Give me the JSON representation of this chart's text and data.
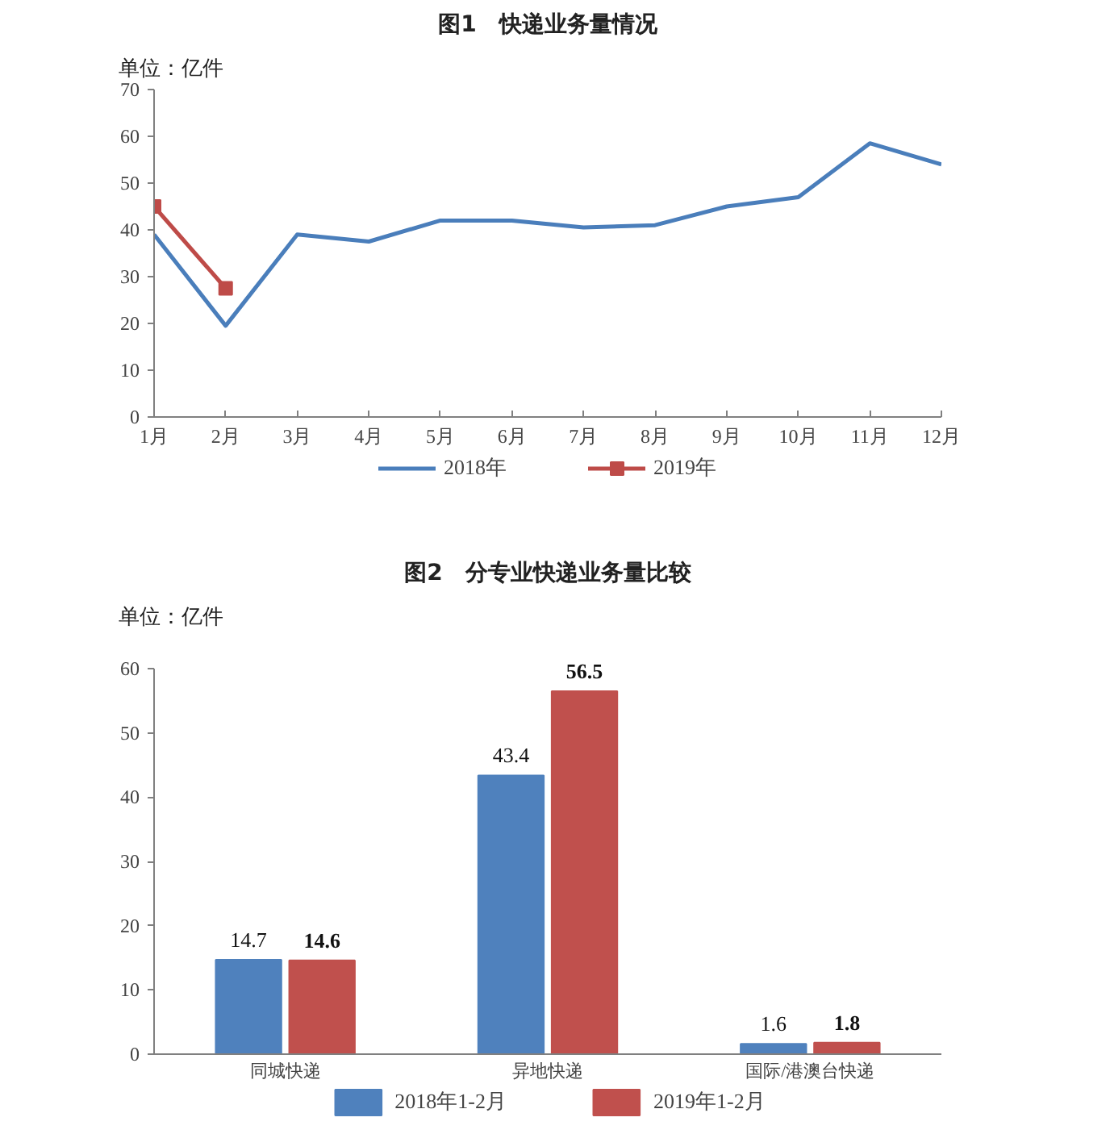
{
  "chart_data": [
    {
      "type": "line",
      "title": "图1　快递业务量情况",
      "ylabel": "单位：亿件",
      "categories": [
        "1月",
        "2月",
        "3月",
        "4月",
        "5月",
        "6月",
        "7月",
        "8月",
        "9月",
        "10月",
        "11月",
        "12月"
      ],
      "series": [
        {
          "name": "2018年",
          "color": "#4a7ebb",
          "marker": "none",
          "values": [
            39,
            19.5,
            39,
            37.5,
            42,
            42,
            40.5,
            41,
            45,
            47,
            58.5,
            54
          ]
        },
        {
          "name": "2019年",
          "color": "#be4b48",
          "marker": "square",
          "values": [
            45,
            27.5,
            null,
            null,
            null,
            null,
            null,
            null,
            null,
            null,
            null,
            null
          ]
        }
      ],
      "ylim": [
        0,
        70
      ],
      "yticks": [
        0,
        10,
        20,
        30,
        40,
        50,
        60,
        70
      ],
      "grid": false,
      "legend": "bottom",
      "line_style": "solid"
    },
    {
      "type": "bar",
      "title": "图2　分专业快递业务量比较",
      "ylabel": "单位：亿件",
      "categories": [
        "同城快递",
        "异地快递",
        "国际/港澳台快递"
      ],
      "series": [
        {
          "name": "2018年1-2月",
          "color": "#4f81bd",
          "values": [
            14.7,
            43.4,
            1.6
          ]
        },
        {
          "name": "2019年1-2月",
          "color": "#c0504d",
          "values": [
            14.6,
            56.5,
            1.8
          ]
        }
      ],
      "ylim": [
        0,
        60
      ],
      "yticks": [
        0,
        10,
        20,
        30,
        40,
        50,
        60
      ],
      "grid": false,
      "legend": "bottom",
      "data_labels": true
    }
  ]
}
